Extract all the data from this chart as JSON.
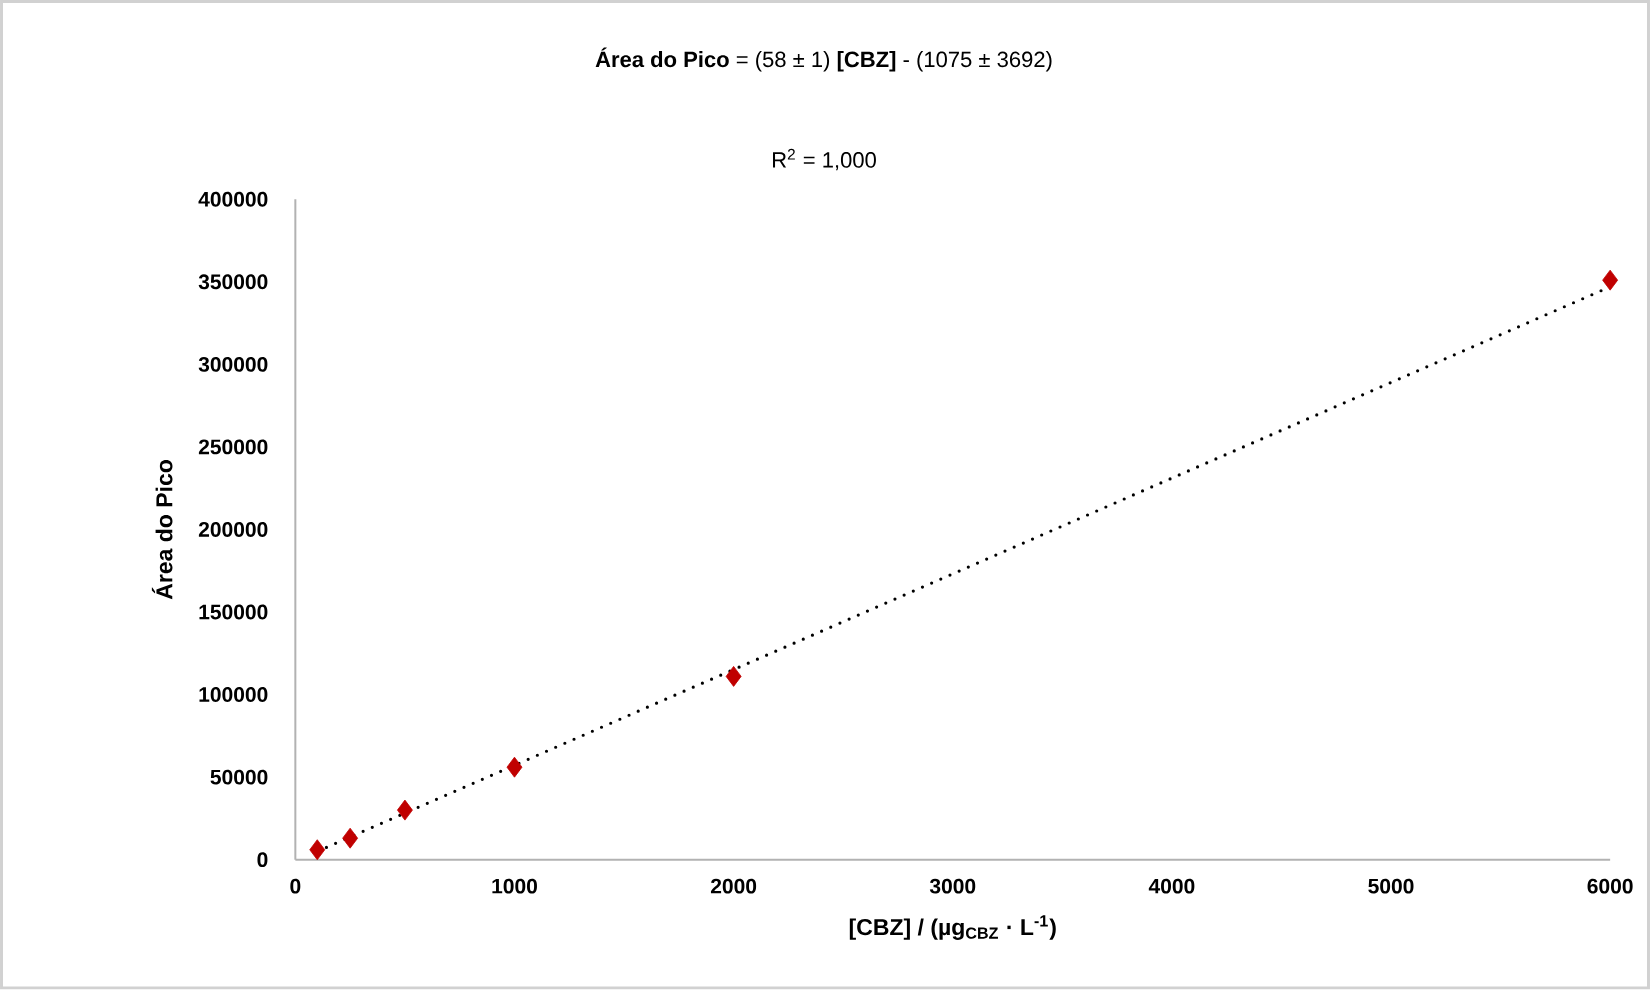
{
  "chart_data": {
    "type": "scatter",
    "title": "**Área do Pico** = (58 ± 1) **[CBZ]** - (1075 ± 3692)",
    "annotations": [
      "R$^{2}$ = 1,000"
    ],
    "xlabel": "[CBZ] / (µg$_{CBZ}$ · L$^{-1}$)",
    "ylabel": "Área do Pico",
    "series": [
      {
        "marker": "diamond",
        "color": "#c00000",
        "x": [
          100,
          250,
          500,
          1000,
          2000,
          6000
        ],
        "values": [
          6000,
          13000,
          30000,
          56000,
          111000,
          351000
        ]
      },
      {
        "type": "line",
        "marker": "none",
        "line_style": "dotted",
        "color": "#000000",
        "x": [
          100,
          6000
        ],
        "values": [
          5000,
          347000
        ]
      }
    ],
    "xlim": [
      0,
      6000
    ],
    "xticks": [
      0,
      1000,
      2000,
      3000,
      4000,
      5000,
      6000
    ],
    "ylim": [
      0,
      400000
    ],
    "yticks": [
      0,
      50000,
      100000,
      150000,
      200000,
      250000,
      300000,
      350000,
      400000
    ],
    "grid": false
  }
}
